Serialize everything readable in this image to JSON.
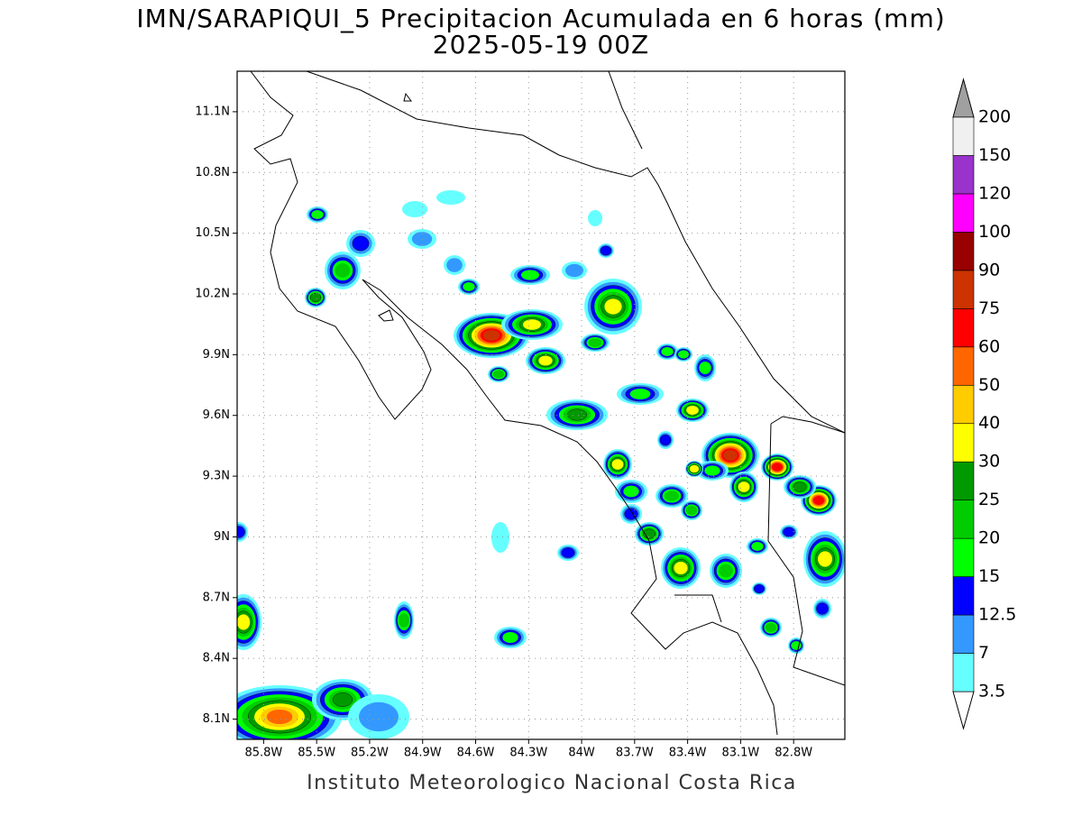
{
  "map": {
    "title": "IMN/SARAPIQUI_5 Precipitacion Acumulada en 6 horas (mm)",
    "subtitle": "2025-05-19 00Z",
    "footer": "Instituto Meteorologico Nacional Costa Rica",
    "xlim": [
      -85.95,
      -82.51
    ],
    "ylim": [
      8.0,
      11.3
    ],
    "grid": true,
    "xticks": [
      {
        "value": -85.8,
        "label": "85.8W"
      },
      {
        "value": -85.5,
        "label": "85.5W"
      },
      {
        "value": -85.2,
        "label": "85.2W"
      },
      {
        "value": -84.9,
        "label": "84.9W"
      },
      {
        "value": -84.6,
        "label": "84.6W"
      },
      {
        "value": -84.3,
        "label": "84.3W"
      },
      {
        "value": -84.0,
        "label": "84W"
      },
      {
        "value": -83.7,
        "label": "83.7W"
      },
      {
        "value": -83.4,
        "label": "83.4W"
      },
      {
        "value": -83.1,
        "label": "83.1W"
      },
      {
        "value": -82.8,
        "label": "82.8W"
      }
    ],
    "yticks": [
      {
        "value": 8.1,
        "label": "8.1N"
      },
      {
        "value": 8.4,
        "label": "8.4N"
      },
      {
        "value": 8.7,
        "label": "8.7N"
      },
      {
        "value": 9.0,
        "label": "9N"
      },
      {
        "value": 9.3,
        "label": "9.3N"
      },
      {
        "value": 9.6,
        "label": "9.6N"
      },
      {
        "value": 9.9,
        "label": "9.9N"
      },
      {
        "value": 10.2,
        "label": "10.2N"
      },
      {
        "value": 10.5,
        "label": "10.5N"
      },
      {
        "value": 10.8,
        "label": "10.8N"
      },
      {
        "value": 11.1,
        "label": "11.1N"
      }
    ],
    "colorbar": {
      "levels": [
        3.5,
        7,
        12.5,
        15,
        20,
        25,
        30,
        40,
        50,
        60,
        75,
        90,
        100,
        120,
        150,
        200
      ],
      "colors": [
        "#66ffff",
        "#3399ff",
        "#0000ff",
        "#00ff00",
        "#00cc00",
        "#009900",
        "#ffff00",
        "#ffcc00",
        "#ff6600",
        "#ff0000",
        "#cc3300",
        "#990000",
        "#ff00ff",
        "#9933cc",
        "#f0f0f0"
      ],
      "under_color": "#ffffff",
      "over_color": "#a0a0a0"
    }
  }
}
